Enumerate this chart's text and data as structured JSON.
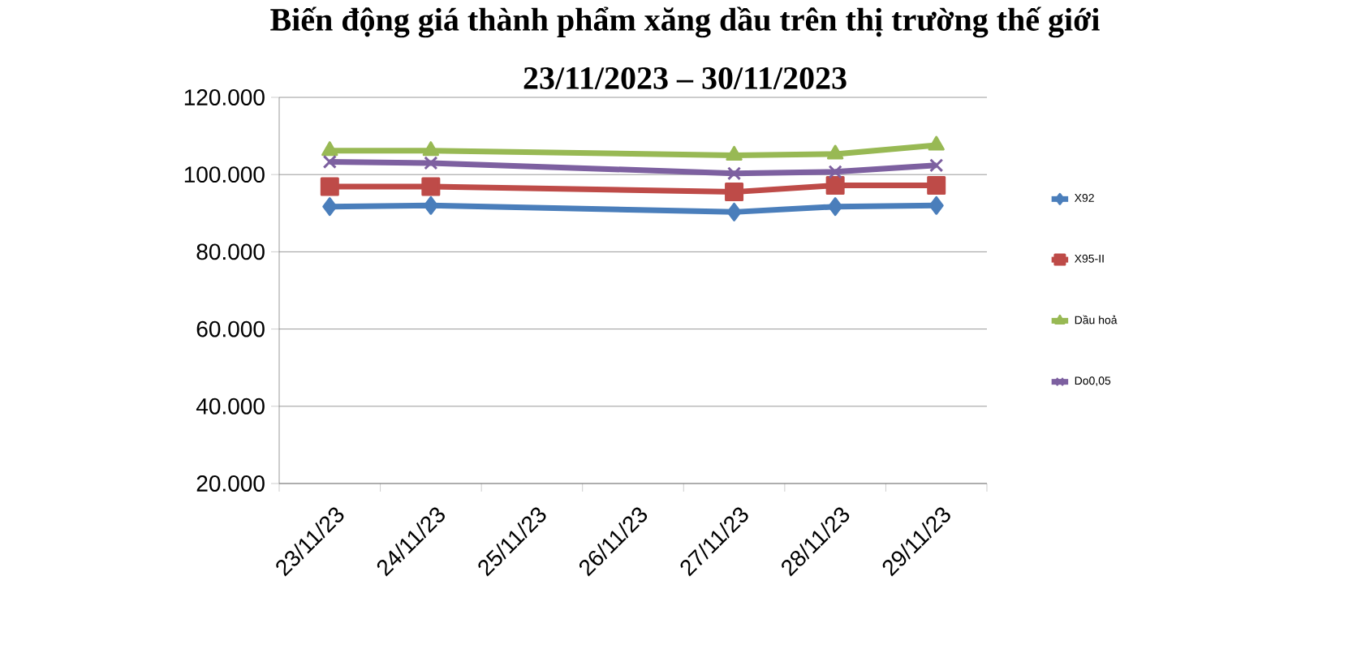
{
  "chart_data": {
    "type": "line",
    "title": "Biến động giá thành phẩm xăng dầu trên thị trường thế giới\n23/11/2023 – 30/11/2023",
    "categories": [
      "23/11/23",
      "24/11/23",
      "25/11/23",
      "26/11/23",
      "27/11/23",
      "28/11/23",
      "29/11/23"
    ],
    "series": [
      {
        "name": "X92",
        "color": "#4a7ebb",
        "marker": "diamond",
        "values": [
          91700,
          92000,
          null,
          null,
          90300,
          91700,
          92000
        ]
      },
      {
        "name": "X95-II",
        "color": "#be4b48",
        "marker": "square",
        "values": [
          96900,
          96900,
          null,
          null,
          95500,
          97200,
          97200
        ]
      },
      {
        "name": "Dầu hoả",
        "color": "#98b954",
        "marker": "triangle",
        "values": [
          106200,
          106200,
          null,
          null,
          105000,
          105300,
          107600
        ]
      },
      {
        "name": "Do0,05",
        "color": "#7d60a0",
        "marker": "cross",
        "values": [
          103300,
          103000,
          null,
          null,
          100300,
          100700,
          102400
        ]
      }
    ],
    "ylim": [
      20000,
      120000
    ],
    "yticks": [
      {
        "value": 20000,
        "label": "20.000"
      },
      {
        "value": 40000,
        "label": "40.000"
      },
      {
        "value": 60000,
        "label": "60.000"
      },
      {
        "value": 80000,
        "label": "80.000"
      },
      {
        "value": 100000,
        "label": "100.000"
      },
      {
        "value": 120000,
        "label": "120.000"
      }
    ],
    "grid": "y",
    "legend": "right"
  }
}
